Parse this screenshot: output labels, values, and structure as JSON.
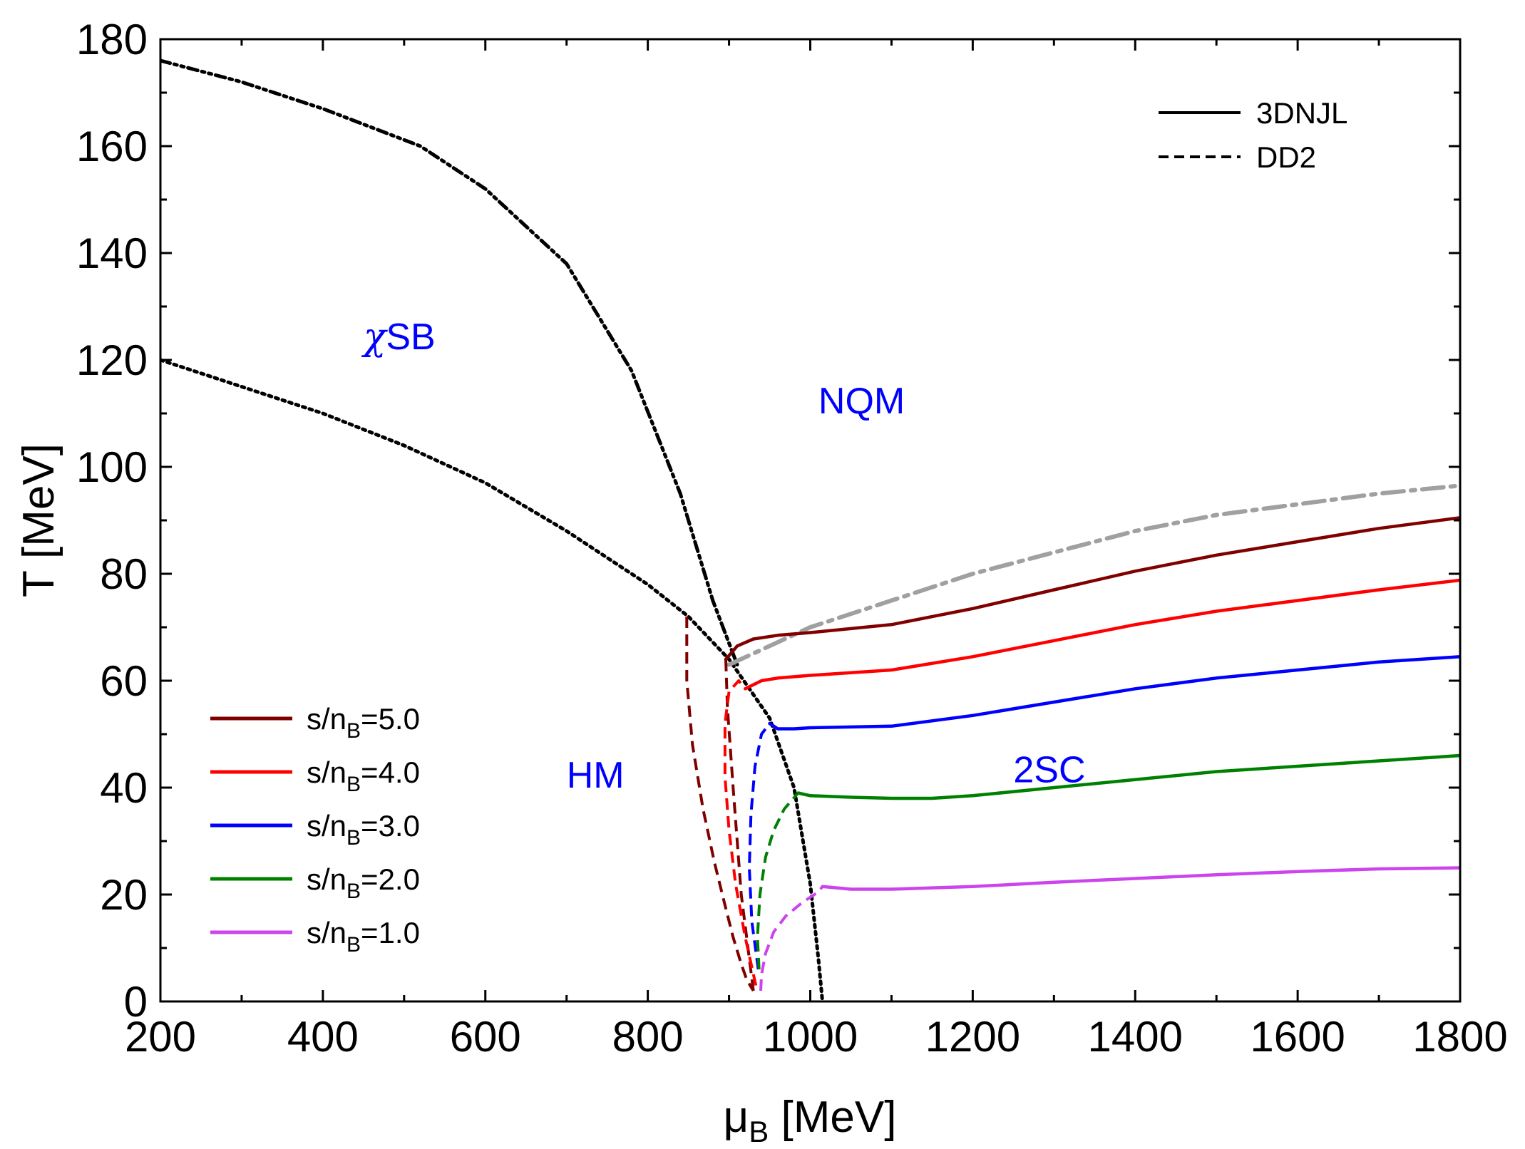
{
  "chart_data": {
    "type": "line",
    "title": "",
    "xlabel": "μB [MeV]",
    "xlabel_parts": {
      "base": "μ",
      "sub": "B",
      "rest": " [MeV]"
    },
    "ylabel": "T [MeV]",
    "xlim": [
      200,
      1800
    ],
    "ylim": [
      0,
      180
    ],
    "x_ticks": [
      200,
      400,
      600,
      800,
      1000,
      1200,
      1400,
      1600,
      1800
    ],
    "y_ticks": [
      0,
      20,
      40,
      60,
      80,
      100,
      120,
      140,
      160,
      180
    ],
    "x_tick_labels": [
      "200",
      "400",
      "600",
      "800",
      "1000",
      "1200",
      "1400",
      "1600",
      "1800"
    ],
    "y_tick_labels": [
      "0",
      "20",
      "40",
      "60",
      "80",
      "100",
      "120",
      "140",
      "160",
      "180"
    ],
    "grid": false,
    "regions": [
      {
        "key": "chiSB",
        "prefix": "χ",
        "label": "SB",
        "x": 450,
        "y": 122
      },
      {
        "key": "NQM",
        "prefix": "",
        "label": "NQM",
        "x": 1010,
        "y": 110
      },
      {
        "key": "HM",
        "prefix": "",
        "label": "HM",
        "x": 700,
        "y": 40
      },
      {
        "key": "2SC",
        "prefix": "",
        "label": "2SC",
        "x": 1250,
        "y": 41
      }
    ],
    "style_legend": {
      "position": "top-right",
      "entries": [
        {
          "label": "3DNJL",
          "style": "solid"
        },
        {
          "label": "DD2",
          "style": "dashed"
        }
      ]
    },
    "series_legend": {
      "position": "bottom-left",
      "entries": [
        {
          "prefix": "s/n",
          "sub": "B",
          "suffix": "=5.0",
          "color": "#800000"
        },
        {
          "prefix": "s/n",
          "sub": "B",
          "suffix": "=4.0",
          "color": "#ff0000"
        },
        {
          "prefix": "s/n",
          "sub": "B",
          "suffix": "=3.0",
          "color": "#0000ff"
        },
        {
          "prefix": "s/n",
          "sub": "B",
          "suffix": "=2.0",
          "color": "#008000"
        },
        {
          "prefix": "s/n",
          "sub": "B",
          "suffix": "=1.0",
          "color": "#cc44ee"
        }
      ]
    },
    "boundaries": [
      {
        "name": "chiral-crossover",
        "style": "dash-dot-dot",
        "color": "#000000",
        "x": [
          200,
          300,
          400,
          520,
          600,
          700,
          780,
          840,
          880,
          910
        ],
        "y": [
          176,
          172,
          167,
          160,
          152,
          138,
          118,
          95,
          75,
          63
        ]
      },
      {
        "name": "hadron-quark-transition",
        "style": "dotted",
        "color": "#000000",
        "x": [
          200,
          300,
          400,
          500,
          600,
          700,
          800,
          850,
          900,
          950,
          980,
          1000,
          1010,
          1015
        ],
        "y": [
          120,
          115,
          110,
          104,
          97,
          88,
          78,
          72,
          64,
          53,
          40,
          22,
          8,
          0
        ]
      },
      {
        "name": "2sc-boundary",
        "style": "dash-dot",
        "color": "#a0a0a0",
        "x": [
          900,
          1000,
          1100,
          1200,
          1300,
          1400,
          1500,
          1600,
          1700,
          1800
        ],
        "y": [
          63,
          70,
          75,
          80,
          84,
          88,
          91,
          93,
          95,
          96.5
        ]
      }
    ],
    "series": [
      {
        "name": "s/nB=5.0",
        "color": "#800000",
        "solid": {
          "x": [
            896,
            910,
            930,
            960,
            1000,
            1100,
            1200,
            1300,
            1400,
            1500,
            1600,
            1700,
            1800
          ],
          "y": [
            64,
            66.5,
            67.8,
            68.5,
            69,
            70.5,
            73.5,
            77,
            80.5,
            83.5,
            86,
            88.5,
            90.5
          ]
        },
        "dashed": [
          {
            "x": [
              848,
              848,
              855,
              868,
              882,
              895,
              905,
              915,
              922,
              930
            ],
            "y": [
              72,
              60,
              48,
              36,
              26,
              18,
              12,
              7,
              4,
              2
            ]
          },
          {
            "x": [
              930,
              915,
              905,
              898,
              896
            ],
            "y": [
              2,
              20,
              40,
              55,
              64
            ]
          }
        ]
      },
      {
        "name": "s/nB=4.0",
        "color": "#ff0000",
        "solid": {
          "x": [
            920,
            940,
            960,
            1000,
            1100,
            1200,
            1300,
            1400,
            1500,
            1600,
            1700,
            1800
          ],
          "y": [
            58.5,
            60,
            60.5,
            61,
            62,
            64.5,
            67.5,
            70.5,
            73,
            75,
            77,
            78.8
          ]
        },
        "dashed": [
          {
            "x": [
              933,
              920,
              908,
              900,
              895,
              895,
              900,
              912,
              920
            ],
            "y": [
              3,
              12,
              22,
              32,
              42,
              52,
              58,
              60,
              58.5
            ]
          }
        ]
      },
      {
        "name": "s/nB=3.0",
        "color": "#0000ff",
        "solid": {
          "x": [
            950,
            960,
            980,
            1000,
            1100,
            1200,
            1300,
            1400,
            1500,
            1600,
            1700,
            1800
          ],
          "y": [
            52,
            51,
            51,
            51.2,
            51.5,
            53.5,
            56,
            58.5,
            60.5,
            62,
            63.5,
            64.5
          ]
        },
        "dashed": [
          {
            "x": [
              936,
              928,
              925,
              927,
              932,
              940,
              950
            ],
            "y": [
              6,
              15,
              25,
              35,
              44,
              50,
              52
            ]
          }
        ]
      },
      {
        "name": "s/nB=2.0",
        "color": "#008000",
        "solid": {
          "x": [
            985,
            1000,
            1050,
            1100,
            1150,
            1200,
            1300,
            1400,
            1500,
            1600,
            1700,
            1800
          ],
          "y": [
            39,
            38.5,
            38.2,
            38,
            38,
            38.5,
            40,
            41.5,
            43,
            44,
            45,
            46
          ]
        },
        "dashed": [
          {
            "x": [
              937,
              935,
              938,
              945,
              955,
              968,
              985
            ],
            "y": [
              6,
              12,
              20,
              27,
              32,
              36,
              39
            ]
          }
        ]
      },
      {
        "name": "s/nB=1.0",
        "color": "#cc44ee",
        "solid": {
          "x": [
            1015,
            1050,
            1100,
            1200,
            1300,
            1400,
            1500,
            1600,
            1700,
            1800
          ],
          "y": [
            21.5,
            21,
            21,
            21.5,
            22.3,
            23,
            23.7,
            24.3,
            24.8,
            25
          ]
        },
        "dashed": [
          {
            "x": [
              939,
              940,
              945,
              955,
              970,
              990,
              1010,
              1015
            ],
            "y": [
              2,
              5,
              9,
              13,
              16,
              18.5,
              20.5,
              21.5
            ]
          }
        ]
      }
    ]
  }
}
